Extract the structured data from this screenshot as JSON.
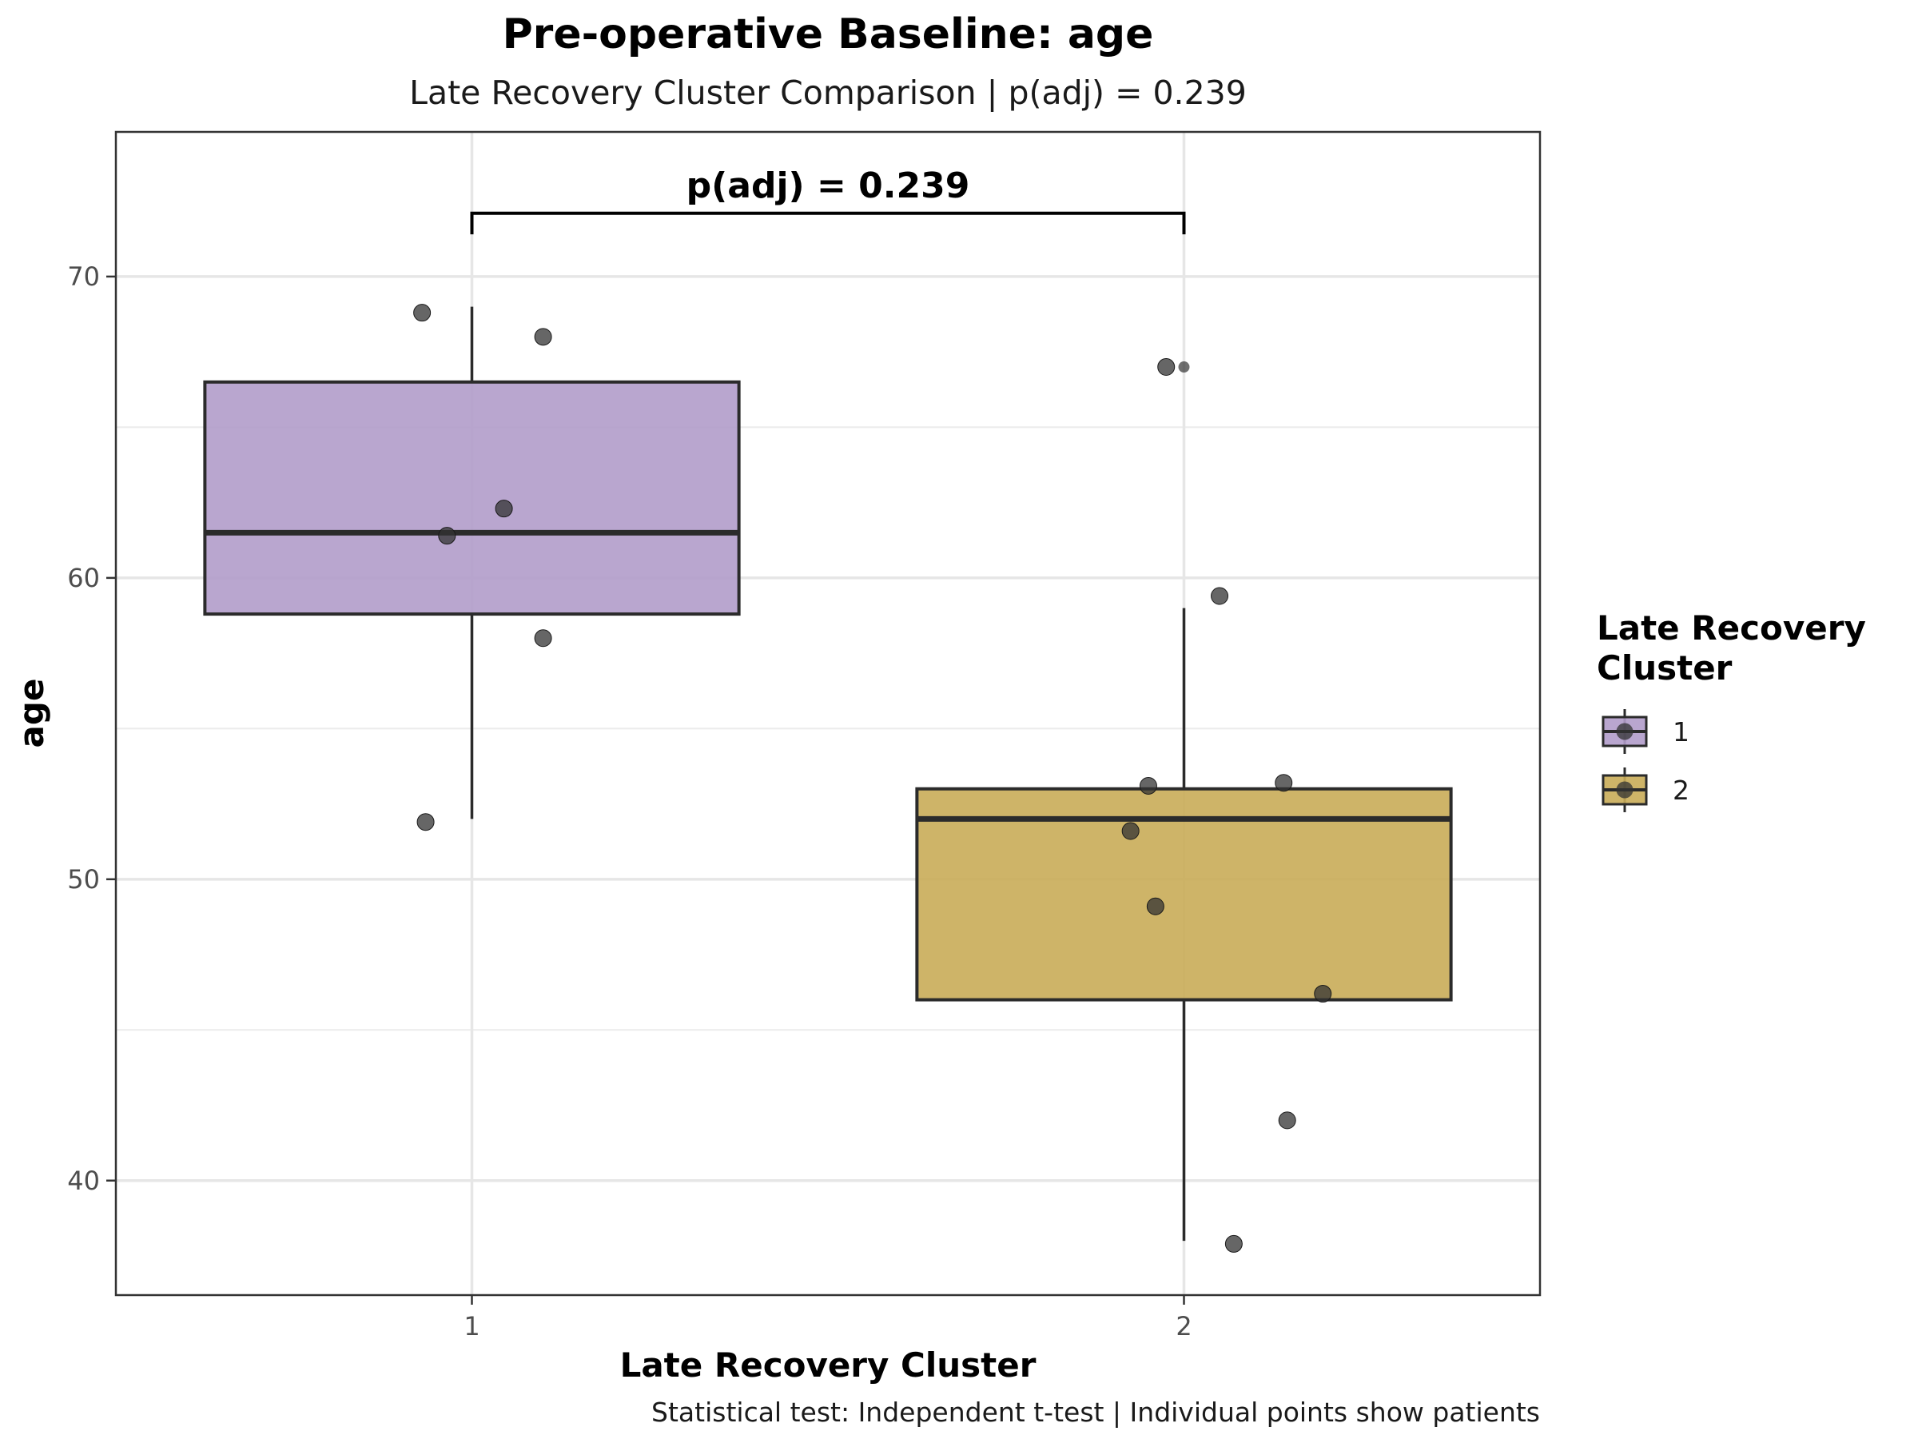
{
  "chart_data": {
    "type": "box",
    "title": "Pre-operative Baseline: age",
    "subtitle": "Late Recovery Cluster Comparison | p(adj) = 0.239",
    "xlabel": "Late Recovery Cluster",
    "ylabel": "age",
    "caption": "Statistical test: Independent t-test | Individual points show patients",
    "categories": [
      "1",
      "2"
    ],
    "ylim": [
      36.2,
      74.8
    ],
    "yticks": [
      40,
      50,
      60,
      70
    ],
    "grid": true,
    "annotation": {
      "text": "p(adj) = 0.239",
      "bracket_y": 72.1,
      "bracket_drop": 0.7
    },
    "boxes": [
      {
        "category": "1",
        "q1": 58.8,
        "median": 61.5,
        "q3": 66.5,
        "whisker_low": 52.0,
        "whisker_high": 69.0,
        "color": "#b19cca"
      },
      {
        "category": "2",
        "q1": 46.0,
        "median": 52.0,
        "q3": 53.0,
        "whisker_low": 38.0,
        "whisker_high": 59.0,
        "color": "#c9ac58"
      }
    ],
    "points": [
      {
        "category": "1",
        "offset": -0.07,
        "y": 68.8
      },
      {
        "category": "1",
        "offset": 0.1,
        "y": 68.0
      },
      {
        "category": "1",
        "offset": 0.045,
        "y": 62.3
      },
      {
        "category": "1",
        "offset": -0.035,
        "y": 61.4
      },
      {
        "category": "1",
        "offset": 0.1,
        "y": 58.0
      },
      {
        "category": "1",
        "offset": -0.065,
        "y": 51.9
      },
      {
        "category": "2",
        "offset": -0.025,
        "y": 67.0
      },
      {
        "category": "2",
        "offset": 0.05,
        "y": 59.4
      },
      {
        "category": "2",
        "offset": -0.05,
        "y": 53.1
      },
      {
        "category": "2",
        "offset": 0.14,
        "y": 53.2
      },
      {
        "category": "2",
        "offset": -0.075,
        "y": 51.6
      },
      {
        "category": "2",
        "offset": -0.04,
        "y": 49.1
      },
      {
        "category": "2",
        "offset": 0.195,
        "y": 46.2
      },
      {
        "category": "2",
        "offset": 0.145,
        "y": 42.0
      },
      {
        "category": "2",
        "offset": 0.07,
        "y": 37.9
      }
    ],
    "outliers": [
      {
        "category": "2",
        "y": 67.0
      }
    ],
    "legend": {
      "title_lines": [
        "Late Recovery",
        "Cluster"
      ],
      "entries": [
        {
          "label": "1",
          "color": "#b19cca"
        },
        {
          "label": "2",
          "color": "#c9ac58"
        }
      ],
      "position": "right"
    }
  }
}
